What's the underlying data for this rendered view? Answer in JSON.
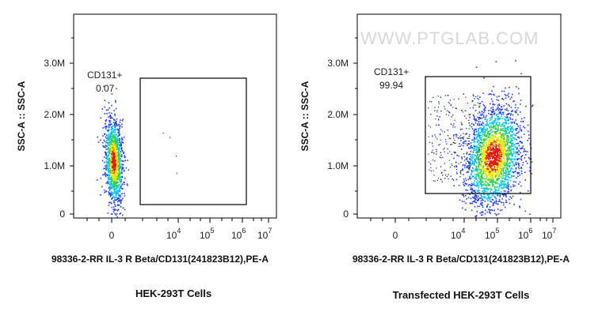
{
  "watermark": "WWW.PTGLAB.COM",
  "colors": {
    "density_low": "#1f3dff",
    "density_mid1": "#00c8ff",
    "density_mid2": "#2ed05a",
    "density_mid3": "#f2e600",
    "density_high": "#e01a10",
    "outlier": "#2b2b2b",
    "gate": "#000000"
  },
  "chart_data": [
    {
      "type": "scatter",
      "title": "",
      "caption": "HEK-293T Cells",
      "xlabel": "98336-2-RR IL-3 R Beta/CD131(241823B12),PE-A",
      "ylabel": "SSC-A :: SSC-A",
      "x_scale": "biexponential",
      "x_ticks": [
        {
          "base": "0",
          "exp": ""
        },
        {
          "base": "10",
          "exp": "4"
        },
        {
          "base": "10",
          "exp": "5"
        },
        {
          "base": "10",
          "exp": "6"
        },
        {
          "base": "10",
          "exp": "7"
        }
      ],
      "y_ticks": [
        "0",
        "1.0M",
        "2.0M",
        "3.0M"
      ],
      "ylim": [
        0,
        3900000
      ],
      "gate": {
        "name": "CD131+",
        "value": "0.07"
      },
      "populations": [
        {
          "x_center": 0,
          "y_center": 1050000,
          "x_spread": "narrow",
          "y_spread": 450000,
          "events": "dense"
        }
      ]
    },
    {
      "type": "scatter",
      "title": "",
      "caption": "Transfected HEK-293T Cells",
      "xlabel": "98336-2-RR IL-3 R Beta/CD131(241823B12),PE-A",
      "ylabel": "SSC-A :: SSC-A",
      "x_scale": "biexponential",
      "x_ticks": [
        {
          "base": "0",
          "exp": ""
        },
        {
          "base": "10",
          "exp": "4"
        },
        {
          "base": "10",
          "exp": "5"
        },
        {
          "base": "10",
          "exp": "6"
        },
        {
          "base": "10",
          "exp": "7"
        }
      ],
      "y_ticks": [
        "0",
        "1.0M",
        "2.0M",
        "3.0M"
      ],
      "ylim": [
        0,
        3900000
      ],
      "gate": {
        "name": "CD131+",
        "value": "99.94"
      },
      "populations": [
        {
          "x_center": 100000,
          "y_center": 1150000,
          "x_spread": "wide",
          "y_spread": 500000,
          "events": "dense"
        }
      ]
    }
  ]
}
